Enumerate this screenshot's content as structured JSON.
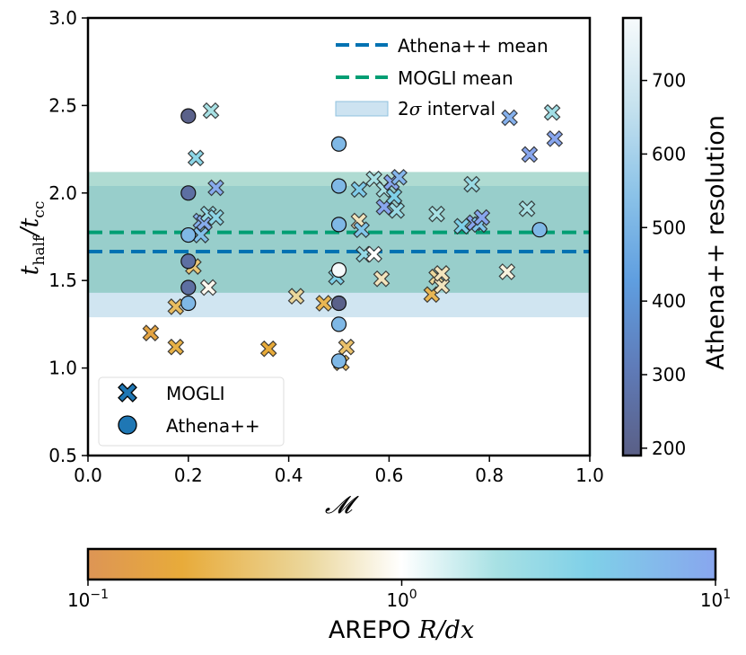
{
  "chart_data": {
    "type": "scatter",
    "title": "",
    "xlabel": "𝓜",
    "ylabel": "t_half / t_cc",
    "xlim": [
      0.0,
      1.0
    ],
    "ylim": [
      0.5,
      3.0
    ],
    "x_ticks": [
      "0.0",
      "0.2",
      "0.4",
      "0.6",
      "0.8",
      "1.0"
    ],
    "y_ticks": [
      "0.5",
      "1.0",
      "1.5",
      "2.0",
      "2.5",
      "3.0"
    ],
    "lines": [
      {
        "name": "Athena++ mean",
        "y": 1.665,
        "color": "#0072B2",
        "style": "dashed"
      },
      {
        "name": "MOGLI mean",
        "y": 1.775,
        "color": "#009E73",
        "style": "dashed"
      }
    ],
    "bands": [
      {
        "name": "2σ interval",
        "y_range": [
          1.29,
          2.04
        ],
        "color": "#8fc0de"
      },
      {
        "name": "2σ interval (MOGLI)",
        "y_range": [
          1.43,
          2.12
        ],
        "color": "#5fb8a6"
      }
    ],
    "legend_main": {
      "position": "top-right",
      "items": [
        {
          "label": "Athena++ mean"
        },
        {
          "label": "MOGLI mean"
        },
        {
          "label_prefix": "2",
          "label_sigma": "σ",
          "label_suffix": " interval"
        }
      ]
    },
    "legend_markers": {
      "position": "lower-left",
      "items": [
        {
          "label": "MOGLI",
          "marker": "x"
        },
        {
          "label": "Athena++",
          "marker": "o"
        }
      ]
    },
    "series": [
      {
        "name": "MOGLI",
        "marker": "x",
        "color_by": "AREPO R/dx (log10)",
        "points": [
          [
            0.125,
            1.2,
            -0.8
          ],
          [
            0.175,
            1.12,
            -0.65
          ],
          [
            0.175,
            1.35,
            -0.55
          ],
          [
            0.21,
            1.58,
            -0.45
          ],
          [
            0.215,
            2.2,
            0.5
          ],
          [
            0.225,
            1.84,
            0.9
          ],
          [
            0.225,
            1.76,
            0.75
          ],
          [
            0.232,
            1.83,
            0.95
          ],
          [
            0.24,
            1.46,
            -0.05
          ],
          [
            0.24,
            1.88,
            0.45
          ],
          [
            0.245,
            2.47,
            0.3
          ],
          [
            0.255,
            2.03,
            0.95
          ],
          [
            0.255,
            1.86,
            0.5
          ],
          [
            0.36,
            1.11,
            -0.7
          ],
          [
            0.415,
            1.41,
            -0.3
          ],
          [
            0.47,
            1.37,
            -0.6
          ],
          [
            0.495,
            1.52,
            0.6
          ],
          [
            0.505,
            1.03,
            -0.55
          ],
          [
            0.515,
            1.12,
            -0.5
          ],
          [
            0.54,
            1.84,
            -0.2
          ],
          [
            0.54,
            2.02,
            0.65
          ],
          [
            0.545,
            1.79,
            0.7
          ],
          [
            0.55,
            1.65,
            0.45
          ],
          [
            0.57,
            2.08,
            0.3
          ],
          [
            0.57,
            1.65,
            0.0
          ],
          [
            0.585,
            1.51,
            -0.2
          ],
          [
            0.59,
            1.92,
            1.05
          ],
          [
            0.59,
            2.02,
            0.3
          ],
          [
            0.605,
            2.06,
            1.0
          ],
          [
            0.61,
            1.98,
            0.6
          ],
          [
            0.615,
            1.9,
            0.4
          ],
          [
            0.62,
            2.09,
            0.85
          ],
          [
            0.685,
            1.42,
            -0.6
          ],
          [
            0.695,
            1.52,
            -0.3
          ],
          [
            0.695,
            1.88,
            0.3
          ],
          [
            0.705,
            1.47,
            -0.2
          ],
          [
            0.705,
            1.54,
            -0.2
          ],
          [
            0.745,
            1.81,
            0.6
          ],
          [
            0.765,
            2.05,
            0.4
          ],
          [
            0.77,
            1.83,
            1.0
          ],
          [
            0.78,
            1.82,
            0.7
          ],
          [
            0.785,
            1.86,
            1.05
          ],
          [
            0.835,
            1.55,
            -0.1
          ],
          [
            0.84,
            2.43,
            0.9
          ],
          [
            0.875,
            1.91,
            0.3
          ],
          [
            0.88,
            2.22,
            1.1
          ],
          [
            0.925,
            2.46,
            0.35
          ],
          [
            0.93,
            2.31,
            1.0
          ]
        ]
      },
      {
        "name": "Athena++",
        "marker": "o",
        "color_by": "Athena++ resolution",
        "points": [
          [
            0.2,
            2.44,
            200
          ],
          [
            0.2,
            2.0,
            256
          ],
          [
            0.2,
            1.76,
            512
          ],
          [
            0.2,
            1.61,
            256
          ],
          [
            0.2,
            1.46,
            256
          ],
          [
            0.2,
            1.37,
            512
          ],
          [
            0.5,
            2.28,
            512
          ],
          [
            0.5,
            2.04,
            512
          ],
          [
            0.5,
            1.82,
            512
          ],
          [
            0.5,
            1.56,
            780
          ],
          [
            0.5,
            1.37,
            200
          ],
          [
            0.5,
            1.25,
            512
          ],
          [
            0.5,
            1.04,
            512
          ],
          [
            0.9,
            1.79,
            512
          ]
        ]
      }
    ],
    "colorbar_right": {
      "label": "Athena++ resolution",
      "range": [
        190,
        785
      ],
      "ticks": [
        "200",
        "300",
        "400",
        "500",
        "600",
        "700"
      ]
    },
    "colorbar_bottom": {
      "label_prefix": "AREPO ",
      "label_math": "R/dx",
      "scale": "log",
      "range": [
        -1,
        1
      ],
      "tick_base": "10",
      "ticks": [
        "−1",
        "0",
        "1"
      ]
    }
  }
}
